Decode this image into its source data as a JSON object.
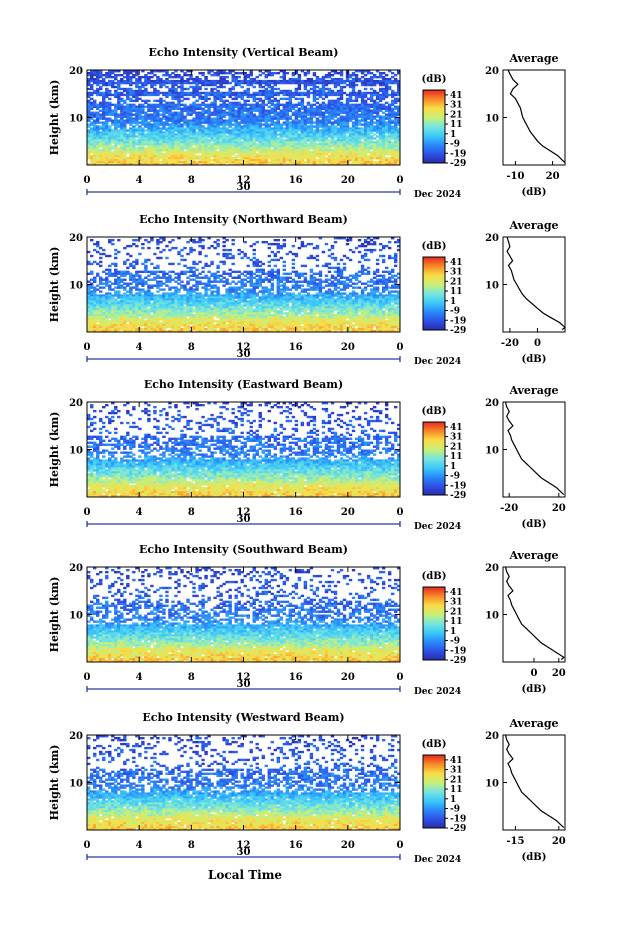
{
  "page": {
    "xlabel": "Local Time",
    "date_label": "30",
    "month_label": "Dec 2024"
  },
  "chart_data": [
    {
      "type": "heatmap",
      "title": "Echo Intensity (Vertical Beam)",
      "ylabel": "Height (km)",
      "xlabel": "",
      "xticks": [
        "0",
        "4",
        "8",
        "12",
        "16",
        "20",
        "0"
      ],
      "xlim": [
        0,
        24
      ],
      "ylim": [
        0,
        20
      ],
      "yticks": [
        "20",
        "10"
      ],
      "colorbar": {
        "unit": "(dB)",
        "ticks": [
          "41",
          "31",
          "21",
          "11",
          "1",
          "-9",
          "-19",
          "-29"
        ],
        "range": [
          -29,
          46
        ]
      },
      "profile": {
        "title": "Average",
        "xlabel": "(dB)",
        "xticks": [
          "-10",
          "20"
        ],
        "yticks": [
          "20",
          "10"
        ],
        "xlim": [
          -20,
          30
        ],
        "points": [
          [
            30,
            0.5
          ],
          [
            28,
            1
          ],
          [
            24,
            2
          ],
          [
            18,
            3
          ],
          [
            12,
            4
          ],
          [
            8,
            5
          ],
          [
            5,
            6
          ],
          [
            2,
            7
          ],
          [
            0,
            8
          ],
          [
            -2,
            9
          ],
          [
            -4,
            10
          ],
          [
            -5,
            11
          ],
          [
            -6,
            12
          ],
          [
            -8,
            13
          ],
          [
            -10,
            14
          ],
          [
            -14,
            15
          ],
          [
            -12,
            16
          ],
          [
            -8,
            17
          ],
          [
            -12,
            18
          ],
          [
            -14,
            19
          ],
          [
            -16,
            20
          ]
        ]
      }
    },
    {
      "type": "heatmap",
      "title": "Echo Intensity (Northward Beam)",
      "ylabel": "Height (km)",
      "xlabel": "",
      "xticks": [
        "0",
        "4",
        "8",
        "12",
        "16",
        "20",
        "0"
      ],
      "xlim": [
        0,
        24
      ],
      "ylim": [
        0,
        20
      ],
      "yticks": [
        "20",
        "10"
      ],
      "colorbar": {
        "unit": "(dB)",
        "ticks": [
          "41",
          "31",
          "21",
          "11",
          "1",
          "-9",
          "-19",
          "-29"
        ],
        "range": [
          -29,
          46
        ]
      },
      "profile": {
        "title": "Average",
        "xlabel": "(dB)",
        "xticks": [
          "-20",
          "0"
        ],
        "yticks": [
          "20",
          "10"
        ],
        "xlim": [
          -25,
          20
        ],
        "points": [
          [
            18,
            0.5
          ],
          [
            20,
            1
          ],
          [
            16,
            2
          ],
          [
            10,
            3
          ],
          [
            4,
            4
          ],
          [
            0,
            5
          ],
          [
            -4,
            6
          ],
          [
            -8,
            7
          ],
          [
            -11,
            8
          ],
          [
            -13,
            9
          ],
          [
            -15,
            10
          ],
          [
            -17,
            11
          ],
          [
            -18,
            12
          ],
          [
            -19,
            13
          ],
          [
            -21,
            14
          ],
          [
            -18,
            15
          ],
          [
            -20,
            16
          ],
          [
            -22,
            17
          ],
          [
            -20,
            18
          ],
          [
            -21,
            19
          ],
          [
            -22,
            20
          ]
        ]
      }
    },
    {
      "type": "heatmap",
      "title": "Echo Intensity (Eastward Beam)",
      "ylabel": "Height (km)",
      "xlabel": "",
      "xticks": [
        "0",
        "4",
        "8",
        "12",
        "16",
        "20",
        "0"
      ],
      "xlim": [
        0,
        24
      ],
      "ylim": [
        0,
        20
      ],
      "yticks": [
        "20",
        "10"
      ],
      "colorbar": {
        "unit": "(dB)",
        "ticks": [
          "41",
          "31",
          "21",
          "11",
          "1",
          "-9",
          "-19",
          "-29"
        ],
        "range": [
          -29,
          46
        ]
      },
      "profile": {
        "title": "Average",
        "xlabel": "(dB)",
        "xticks": [
          "-20",
          "20"
        ],
        "yticks": [
          "20",
          "10"
        ],
        "xlim": [
          -25,
          25
        ],
        "points": [
          [
            24,
            0.5
          ],
          [
            22,
            1
          ],
          [
            18,
            2
          ],
          [
            12,
            3
          ],
          [
            6,
            4
          ],
          [
            2,
            5
          ],
          [
            -2,
            6
          ],
          [
            -6,
            7
          ],
          [
            -10,
            8
          ],
          [
            -12,
            9
          ],
          [
            -14,
            10
          ],
          [
            -16,
            11
          ],
          [
            -18,
            12
          ],
          [
            -19,
            13
          ],
          [
            -21,
            14
          ],
          [
            -17,
            15
          ],
          [
            -20,
            16
          ],
          [
            -22,
            17
          ],
          [
            -20,
            18
          ],
          [
            -22,
            19
          ],
          [
            -23,
            20
          ]
        ]
      }
    },
    {
      "type": "heatmap",
      "title": "Echo Intensity (Southward Beam)",
      "ylabel": "Height (km)",
      "xlabel": "",
      "xticks": [
        "0",
        "4",
        "8",
        "12",
        "16",
        "20",
        "0"
      ],
      "xlim": [
        0,
        24
      ],
      "ylim": [
        0,
        20
      ],
      "yticks": [
        "20",
        "10"
      ],
      "colorbar": {
        "unit": "(dB)",
        "ticks": [
          "41",
          "31",
          "21",
          "11",
          "1",
          "-9",
          "-19",
          "-29"
        ],
        "range": [
          -29,
          46
        ]
      },
      "profile": {
        "title": "Average",
        "xlabel": "(dB)",
        "xticks": [
          "0",
          "20"
        ],
        "yticks": [
          "20",
          "10"
        ],
        "xlim": [
          -25,
          25
        ],
        "points": [
          [
            22,
            0.5
          ],
          [
            24,
            1
          ],
          [
            18,
            2
          ],
          [
            12,
            3
          ],
          [
            6,
            4
          ],
          [
            2,
            5
          ],
          [
            -2,
            6
          ],
          [
            -6,
            7
          ],
          [
            -10,
            8
          ],
          [
            -12,
            9
          ],
          [
            -14,
            10
          ],
          [
            -16,
            11
          ],
          [
            -18,
            12
          ],
          [
            -19,
            13
          ],
          [
            -21,
            14
          ],
          [
            -17,
            15
          ],
          [
            -20,
            16
          ],
          [
            -22,
            17
          ],
          [
            -20,
            18
          ],
          [
            -22,
            19
          ],
          [
            -23,
            20
          ]
        ]
      }
    },
    {
      "type": "heatmap",
      "title": "Echo Intensity (Westward Beam)",
      "ylabel": "Height (km)",
      "xlabel": "",
      "xticks": [
        "0",
        "4",
        "8",
        "12",
        "16",
        "20",
        "0"
      ],
      "xlim": [
        0,
        24
      ],
      "ylim": [
        0,
        20
      ],
      "yticks": [
        "20",
        "10"
      ],
      "colorbar": {
        "unit": "(dB)",
        "ticks": [
          "41",
          "31",
          "21",
          "11",
          "1",
          "-9",
          "-19",
          "-29"
        ],
        "range": [
          -29,
          46
        ]
      },
      "profile": {
        "title": "Average",
        "xlabel": "(dB)",
        "xticks": [
          "-15",
          "20"
        ],
        "yticks": [
          "20",
          "10"
        ],
        "xlim": [
          -25,
          25
        ],
        "points": [
          [
            24,
            0.5
          ],
          [
            22,
            1
          ],
          [
            18,
            2
          ],
          [
            12,
            3
          ],
          [
            6,
            4
          ],
          [
            2,
            5
          ],
          [
            -2,
            6
          ],
          [
            -6,
            7
          ],
          [
            -10,
            8
          ],
          [
            -12,
            9
          ],
          [
            -14,
            10
          ],
          [
            -16,
            11
          ],
          [
            -18,
            12
          ],
          [
            -19,
            13
          ],
          [
            -21,
            14
          ],
          [
            -17,
            15
          ],
          [
            -20,
            16
          ],
          [
            -22,
            17
          ],
          [
            -20,
            18
          ],
          [
            -22,
            19
          ],
          [
            -23,
            20
          ]
        ]
      }
    }
  ]
}
